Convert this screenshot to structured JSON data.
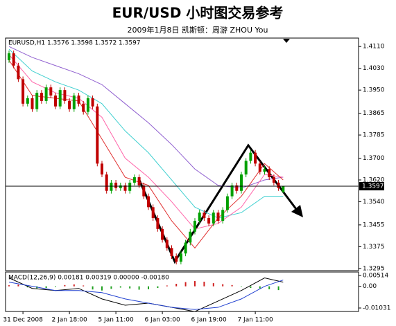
{
  "chart_data": {
    "type": "candlestick",
    "title": "EUR/USD 小时图交易参考",
    "subtitle": "2009年1月8日  凯斯顿：周游 ZHOU You",
    "panel_label": "EURUSD,H1  1.3576 1.3598 1.3572 1.3597",
    "x": [
      null,
      null,
      null,
      "31 Dec 2008",
      null,
      null,
      null,
      null,
      null,
      null,
      null,
      null,
      null,
      "2 Jan 18:00",
      null,
      null,
      null,
      null,
      null,
      null,
      null,
      null,
      null,
      "5 Jan 11:00",
      null,
      null,
      null,
      null,
      null,
      null,
      null,
      null,
      null,
      "6 Jan 03:00",
      null,
      null,
      null,
      null,
      null,
      null,
      null,
      null,
      null,
      "6 Jan 19:00",
      null,
      null,
      null,
      null,
      null,
      null,
      null,
      null,
      null,
      "7 Jan 11:00",
      null,
      null,
      null,
      null,
      null,
      null
    ],
    "open": [
      1.406,
      1.4085,
      1.404,
      1.399,
      1.39,
      1.392,
      1.388,
      1.394,
      1.391,
      1.396,
      1.393,
      1.389,
      1.395,
      1.391,
      1.388,
      1.393,
      1.39,
      1.387,
      1.392,
      1.389,
      1.368,
      1.364,
      1.358,
      1.361,
      1.359,
      1.36,
      1.358,
      1.361,
      1.363,
      1.36,
      1.356,
      1.352,
      1.348,
      1.344,
      1.34,
      1.337,
      1.334,
      1.332,
      1.335,
      1.339,
      1.343,
      1.347,
      1.35,
      1.348,
      1.346,
      1.35,
      1.347,
      1.351,
      1.356,
      1.36,
      1.358,
      1.364,
      1.369,
      1.372,
      1.368,
      1.365,
      1.366,
      1.363,
      1.361,
      1.3576
    ],
    "high": [
      1.4095,
      1.4095,
      1.405,
      1.4,
      1.393,
      1.393,
      1.395,
      1.395,
      1.397,
      1.397,
      1.394,
      1.396,
      1.396,
      1.392,
      1.394,
      1.394,
      1.391,
      1.393,
      1.393,
      1.39,
      1.369,
      1.365,
      1.362,
      1.362,
      1.361,
      1.361,
      1.362,
      1.364,
      1.364,
      1.361,
      1.357,
      1.353,
      1.349,
      1.345,
      1.341,
      1.338,
      1.335,
      1.336,
      1.34,
      1.344,
      1.348,
      1.351,
      1.351,
      1.349,
      1.351,
      1.351,
      1.352,
      1.357,
      1.361,
      1.361,
      1.365,
      1.37,
      1.373,
      1.373,
      1.369,
      1.367,
      1.367,
      1.364,
      1.362,
      1.3598
    ],
    "low": [
      1.405,
      1.403,
      1.398,
      1.389,
      1.389,
      1.387,
      1.387,
      1.39,
      1.39,
      1.392,
      1.388,
      1.388,
      1.39,
      1.387,
      1.387,
      1.389,
      1.386,
      1.386,
      1.388,
      1.367,
      1.363,
      1.357,
      1.357,
      1.358,
      1.358,
      1.357,
      1.357,
      1.36,
      1.359,
      1.355,
      1.351,
      1.347,
      1.343,
      1.339,
      1.336,
      1.333,
      1.331,
      1.331,
      1.334,
      1.338,
      1.342,
      1.346,
      1.347,
      1.345,
      1.345,
      1.346,
      1.346,
      1.35,
      1.355,
      1.357,
      1.357,
      1.363,
      1.368,
      1.367,
      1.364,
      1.364,
      1.362,
      1.36,
      1.358,
      1.3572
    ],
    "close": [
      1.4085,
      1.404,
      1.399,
      1.39,
      1.392,
      1.388,
      1.394,
      1.391,
      1.396,
      1.393,
      1.389,
      1.395,
      1.391,
      1.388,
      1.393,
      1.39,
      1.387,
      1.392,
      1.389,
      1.368,
      1.364,
      1.358,
      1.361,
      1.359,
      1.36,
      1.358,
      1.361,
      1.363,
      1.36,
      1.356,
      1.352,
      1.348,
      1.344,
      1.34,
      1.337,
      1.334,
      1.332,
      1.335,
      1.339,
      1.343,
      1.347,
      1.35,
      1.348,
      1.346,
      1.35,
      1.347,
      1.351,
      1.356,
      1.36,
      1.358,
      1.364,
      1.369,
      1.372,
      1.368,
      1.365,
      1.366,
      1.363,
      1.361,
      1.359,
      1.3597
    ],
    "up_color": "#00a000",
    "down_color": "#c00000",
    "ylim": [
      1.3287,
      1.4141
    ],
    "yticks": [
      {
        "value": 1.411,
        "label": "1.4110"
      },
      {
        "value": 1.403,
        "label": "1.4030"
      },
      {
        "value": 1.395,
        "label": "1.3950"
      },
      1.3865,
      1.3785,
      {
        "value": 1.37,
        "label": "1.3700"
      },
      {
        "value": 1.362,
        "label": "1.3620"
      },
      {
        "value": 1.354,
        "label": "1.3540"
      },
      1.3455,
      1.3375,
      1.3295
    ],
    "last_price": 1.3597,
    "moving_averages": [
      {
        "color": "#9060d0",
        "x": [
          0,
          5,
          10,
          15,
          20,
          25,
          30,
          35,
          40,
          45,
          50,
          55,
          59
        ],
        "values": [
          1.411,
          1.407,
          1.404,
          1.401,
          1.397,
          1.39,
          1.383,
          1.375,
          1.366,
          1.36,
          1.359,
          1.362,
          1.363
        ]
      },
      {
        "color": "#40d0d0",
        "x": [
          0,
          5,
          10,
          15,
          20,
          25,
          30,
          35,
          40,
          45,
          50,
          55,
          59
        ],
        "values": [
          1.41,
          1.402,
          1.398,
          1.395,
          1.39,
          1.38,
          1.372,
          1.362,
          1.352,
          1.348,
          1.35,
          1.356,
          1.356
        ]
      },
      {
        "color": "#ff66aa",
        "x": [
          0,
          5,
          10,
          15,
          20,
          25,
          30,
          35,
          40,
          45,
          50,
          55,
          59
        ],
        "values": [
          1.408,
          1.398,
          1.394,
          1.392,
          1.385,
          1.37,
          1.363,
          1.354,
          1.344,
          1.346,
          1.352,
          1.364,
          1.363
        ]
      },
      {
        "color": "#e03030",
        "x": [
          0,
          5,
          10,
          15,
          20,
          25,
          30,
          35,
          40,
          45,
          50,
          55,
          59
        ],
        "values": [
          1.406,
          1.393,
          1.392,
          1.391,
          1.377,
          1.363,
          1.36,
          1.347,
          1.337,
          1.348,
          1.356,
          1.368,
          1.362
        ]
      }
    ],
    "macd": {
      "label": "MACD(12,26,9)  0.00181  0.00319  0.00000  -0.00180",
      "ylim": [
        -0.01196,
        0.0068
      ],
      "yticks": [
        0.00514,
        {
          "value": 0,
          "label": "0.00"
        },
        -0.01031
      ],
      "histogram": {
        "pos_color": "#d02020",
        "neg_color": "#20a020",
        "x": [
          0,
          2,
          4,
          6,
          8,
          10,
          12,
          14,
          16,
          18,
          20,
          22,
          24,
          26,
          28,
          30,
          32,
          34,
          36,
          38,
          40,
          42,
          44,
          46,
          48,
          50,
          52,
          54,
          56,
          58
        ],
        "values": [
          0.0005,
          0.0008,
          -0.0005,
          -0.001,
          -0.0008,
          -0.0003,
          0.0006,
          0.0009,
          0.0004,
          -0.0015,
          -0.002,
          -0.0012,
          -0.0006,
          -0.001,
          -0.0016,
          -0.0014,
          -0.0008,
          0.0004,
          0.0012,
          0.002,
          0.0025,
          0.0022,
          0.0015,
          0.001,
          0.0006,
          -0.0002,
          -0.0008,
          -0.001,
          -0.0014,
          -0.0018
        ]
      },
      "lines": [
        {
          "color": "#000000",
          "x": [
            0,
            5,
            10,
            15,
            20,
            25,
            30,
            35,
            40,
            45,
            50,
            55,
            59
          ],
          "values": [
            0.004,
            -0.001,
            -0.002,
            -0.001,
            -0.006,
            -0.009,
            -0.008,
            -0.01,
            -0.012,
            -0.007,
            -0.002,
            0.004,
            0.002
          ]
        },
        {
          "color": "#2040d0",
          "x": [
            0,
            5,
            10,
            15,
            20,
            25,
            30,
            35,
            40,
            45,
            50,
            55,
            59
          ],
          "values": [
            0.002,
            0.0,
            -0.002,
            -0.002,
            -0.003,
            -0.006,
            -0.008,
            -0.01,
            -0.011,
            -0.01,
            -0.006,
            0.0,
            0.003
          ]
        }
      ]
    }
  }
}
